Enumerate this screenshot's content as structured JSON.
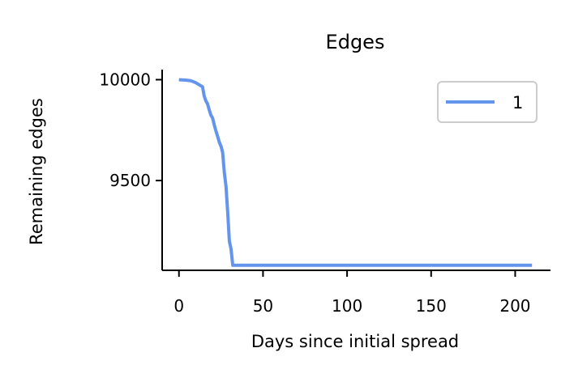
{
  "chart_data": {
    "type": "line",
    "title": "Edges",
    "xlabel": "Days since initial spread",
    "ylabel": "Remaining edges",
    "xlim": [
      -10,
      221
    ],
    "ylim": [
      9055,
      10050
    ],
    "xticks": [
      0,
      50,
      100,
      150,
      200
    ],
    "yticks": [
      9500,
      10000
    ],
    "grid": false,
    "legend_position": "top-right",
    "series": [
      {
        "name": "1",
        "color": "#6495ED",
        "x": [
          0,
          4,
          7,
          10,
          12,
          14,
          15,
          16,
          17,
          18,
          19,
          20,
          21,
          22,
          23,
          24,
          25,
          26,
          27,
          28,
          29,
          30,
          31,
          32,
          33,
          50,
          100,
          150,
          210
        ],
        "y": [
          10000,
          9998,
          9995,
          9985,
          9975,
          9965,
          9920,
          9895,
          9880,
          9850,
          9825,
          9810,
          9775,
          9745,
          9720,
          9690,
          9670,
          9640,
          9540,
          9470,
          9340,
          9200,
          9160,
          9080,
          9080,
          9080,
          9080,
          9080,
          9080
        ]
      }
    ]
  }
}
